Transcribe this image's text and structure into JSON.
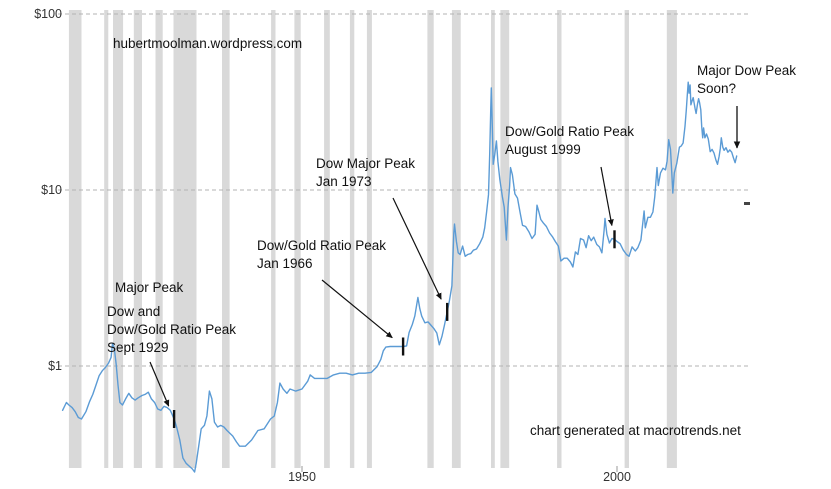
{
  "watermark": "hubertmoolman.wordpress.com",
  "credit": "chart generated at macrotrends.net",
  "annotations": {
    "major_peak": {
      "lines": [
        "Major Peak"
      ]
    },
    "peak_1929": {
      "lines": [
        "Dow and",
        "Dow/Gold Ratio Peak",
        "Sept 1929"
      ],
      "target": {
        "year": 1929.7,
        "value": 0.5
      }
    },
    "peak_1966": {
      "lines": [
        "Dow/Gold Ratio Peak",
        "Jan 1966"
      ],
      "target": {
        "year": 1966.05,
        "value": 1.29
      }
    },
    "peak_1973": {
      "lines": [
        "Dow Major Peak",
        "Jan 1973"
      ],
      "target": {
        "year": 1973.05,
        "value": 2.03
      }
    },
    "peak_1999": {
      "lines": [
        "Dow/Gold Ratio Peak",
        "August 1999"
      ],
      "target": {
        "year": 1999.6,
        "value": 5.25
      }
    },
    "peak_soon": {
      "lines": [
        "Major Dow Peak",
        "Soon?"
      ]
    }
  },
  "chart_data": {
    "type": "line",
    "title": "",
    "xlabel": "",
    "ylabel": "",
    "y_scale": "log",
    "y_ticks": [
      "$100",
      "$10",
      "$1"
    ],
    "y_tick_values": [
      100,
      10,
      1
    ],
    "x_ticks": [
      "1950",
      "2000"
    ],
    "x_tick_values": [
      1950,
      2000
    ],
    "x_range": [
      1912,
      2020
    ],
    "y_range": [
      0.2,
      120
    ],
    "grid": "dashed-horizontal",
    "line_color": "#5b9bd5",
    "recession_color": "#d9d9d9",
    "annotation_color": "#111111",
    "recessions": [
      [
        1913.0,
        1915.0
      ],
      [
        1918.6,
        1919.25
      ],
      [
        1920.0,
        1921.6
      ],
      [
        1923.3,
        1924.6
      ],
      [
        1926.75,
        1927.9
      ],
      [
        1929.6,
        1933.25
      ],
      [
        1937.3,
        1938.5
      ],
      [
        1945.1,
        1945.8
      ],
      [
        1948.8,
        1949.8
      ],
      [
        1953.5,
        1954.4
      ],
      [
        1957.6,
        1958.3
      ],
      [
        1960.3,
        1961.1
      ],
      [
        1969.9,
        1970.9
      ],
      [
        1973.8,
        1975.2
      ],
      [
        1980.0,
        1980.6
      ],
      [
        1981.5,
        1982.9
      ],
      [
        1990.5,
        1991.2
      ],
      [
        2001.2,
        2001.9
      ],
      [
        2007.9,
        2009.5
      ]
    ],
    "series": [
      {
        "name": "price-usd",
        "points": [
          [
            1912.0,
            0.56
          ],
          [
            1912.6,
            0.62
          ],
          [
            1913.0,
            0.6
          ],
          [
            1913.5,
            0.58
          ],
          [
            1914.0,
            0.55
          ],
          [
            1914.5,
            0.51
          ],
          [
            1915.0,
            0.5
          ],
          [
            1915.7,
            0.55
          ],
          [
            1916.3,
            0.63
          ],
          [
            1916.8,
            0.69
          ],
          [
            1917.3,
            0.78
          ],
          [
            1917.8,
            0.88
          ],
          [
            1918.3,
            0.94
          ],
          [
            1918.8,
            0.98
          ],
          [
            1919.3,
            1.04
          ],
          [
            1919.7,
            1.12
          ],
          [
            1919.92,
            1.34
          ],
          [
            1920.2,
            1.26
          ],
          [
            1920.5,
            1.02
          ],
          [
            1920.8,
            0.78
          ],
          [
            1921.1,
            0.62
          ],
          [
            1921.5,
            0.6
          ],
          [
            1922.0,
            0.65
          ],
          [
            1922.5,
            0.7
          ],
          [
            1923.0,
            0.66
          ],
          [
            1923.5,
            0.64
          ],
          [
            1924.0,
            0.66
          ],
          [
            1924.6,
            0.68
          ],
          [
            1925.1,
            0.69
          ],
          [
            1925.6,
            0.71
          ],
          [
            1926.1,
            0.65
          ],
          [
            1926.6,
            0.62
          ],
          [
            1927.1,
            0.57
          ],
          [
            1927.6,
            0.56
          ],
          [
            1928.1,
            0.59
          ],
          [
            1928.6,
            0.58
          ],
          [
            1929.1,
            0.56
          ],
          [
            1929.7,
            0.5
          ],
          [
            1930.1,
            0.45
          ],
          [
            1930.6,
            0.38
          ],
          [
            1931.1,
            0.3
          ],
          [
            1931.6,
            0.28
          ],
          [
            1932.1,
            0.27
          ],
          [
            1932.6,
            0.26
          ],
          [
            1932.95,
            0.25
          ],
          [
            1933.2,
            0.28
          ],
          [
            1933.6,
            0.35
          ],
          [
            1934.0,
            0.44
          ],
          [
            1934.5,
            0.46
          ],
          [
            1934.9,
            0.52
          ],
          [
            1935.3,
            0.72
          ],
          [
            1935.7,
            0.65
          ],
          [
            1936.1,
            0.48
          ],
          [
            1936.6,
            0.45
          ],
          [
            1937.1,
            0.46
          ],
          [
            1937.6,
            0.45
          ],
          [
            1938.1,
            0.43
          ],
          [
            1939.0,
            0.4
          ],
          [
            1939.6,
            0.37
          ],
          [
            1940.1,
            0.35
          ],
          [
            1941.0,
            0.35
          ],
          [
            1942.0,
            0.38
          ],
          [
            1943.0,
            0.43
          ],
          [
            1944.0,
            0.44
          ],
          [
            1945.0,
            0.5
          ],
          [
            1945.6,
            0.52
          ],
          [
            1946.1,
            0.62
          ],
          [
            1946.5,
            0.8
          ],
          [
            1947.0,
            0.74
          ],
          [
            1947.6,
            0.7
          ],
          [
            1948.1,
            0.74
          ],
          [
            1949.0,
            0.72
          ],
          [
            1950.0,
            0.74
          ],
          [
            1950.9,
            0.82
          ],
          [
            1951.3,
            0.89
          ],
          [
            1952.0,
            0.85
          ],
          [
            1953.0,
            0.85
          ],
          [
            1954.0,
            0.85
          ],
          [
            1955.0,
            0.89
          ],
          [
            1956.0,
            0.91
          ],
          [
            1957.0,
            0.91
          ],
          [
            1958.0,
            0.89
          ],
          [
            1959.0,
            0.91
          ],
          [
            1960.0,
            0.91
          ],
          [
            1961.0,
            0.92
          ],
          [
            1961.9,
            0.99
          ],
          [
            1962.5,
            1.09
          ],
          [
            1962.9,
            1.22
          ],
          [
            1963.3,
            1.28
          ],
          [
            1964.0,
            1.29
          ],
          [
            1965.0,
            1.29
          ],
          [
            1966.05,
            1.29
          ],
          [
            1966.6,
            1.3
          ],
          [
            1967.0,
            1.55
          ],
          [
            1967.5,
            1.72
          ],
          [
            1967.9,
            1.92
          ],
          [
            1968.4,
            2.45
          ],
          [
            1968.7,
            2.12
          ],
          [
            1969.0,
            1.92
          ],
          [
            1969.5,
            1.76
          ],
          [
            1970.0,
            1.78
          ],
          [
            1970.5,
            1.7
          ],
          [
            1970.95,
            1.63
          ],
          [
            1971.4,
            1.54
          ],
          [
            1971.8,
            1.32
          ],
          [
            1972.2,
            1.47
          ],
          [
            1972.6,
            1.7
          ],
          [
            1972.9,
            1.92
          ],
          [
            1973.05,
            2.03
          ],
          [
            1973.4,
            2.35
          ],
          [
            1973.8,
            2.85
          ],
          [
            1974.1,
            5.7
          ],
          [
            1974.2,
            6.4
          ],
          [
            1974.5,
            5.1
          ],
          [
            1974.8,
            4.4
          ],
          [
            1975.1,
            4.3
          ],
          [
            1975.5,
            4.8
          ],
          [
            1975.9,
            4.2
          ],
          [
            1976.3,
            4.3
          ],
          [
            1976.8,
            4.35
          ],
          [
            1977.2,
            4.55
          ],
          [
            1977.7,
            4.62
          ],
          [
            1978.2,
            4.95
          ],
          [
            1978.7,
            5.4
          ],
          [
            1979.0,
            6.1
          ],
          [
            1979.3,
            7.5
          ],
          [
            1979.6,
            9.4
          ],
          [
            1979.8,
            16.0
          ],
          [
            1979.95,
            28.0
          ],
          [
            1980.04,
            38.0
          ],
          [
            1980.2,
            23.0
          ],
          [
            1980.35,
            14.0
          ],
          [
            1980.6,
            16.0
          ],
          [
            1980.85,
            19.0
          ],
          [
            1981.1,
            14.5
          ],
          [
            1981.4,
            11.5
          ],
          [
            1981.8,
            9.2
          ],
          [
            1982.1,
            8.0
          ],
          [
            1982.45,
            5.2
          ],
          [
            1982.7,
            8.0
          ],
          [
            1982.95,
            10.5
          ],
          [
            1983.1,
            13.4
          ],
          [
            1983.4,
            12.2
          ],
          [
            1983.8,
            9.5
          ],
          [
            1984.2,
            9.0
          ],
          [
            1984.6,
            7.5
          ],
          [
            1985.0,
            6.3
          ],
          [
            1985.5,
            6.2
          ],
          [
            1986.0,
            5.8
          ],
          [
            1986.5,
            5.3
          ],
          [
            1987.0,
            5.6
          ],
          [
            1987.3,
            8.2
          ],
          [
            1987.6,
            7.5
          ],
          [
            1987.9,
            6.8
          ],
          [
            1988.3,
            6.5
          ],
          [
            1988.8,
            6.2
          ],
          [
            1989.3,
            5.7
          ],
          [
            1989.8,
            5.4
          ],
          [
            1990.2,
            5.1
          ],
          [
            1990.7,
            4.8
          ],
          [
            1991.1,
            3.95
          ],
          [
            1991.6,
            4.1
          ],
          [
            1992.1,
            4.1
          ],
          [
            1992.6,
            3.9
          ],
          [
            1993.0,
            3.65
          ],
          [
            1993.4,
            4.45
          ],
          [
            1993.8,
            4.3
          ],
          [
            1994.2,
            5.3
          ],
          [
            1994.7,
            5.2
          ],
          [
            1995.1,
            4.7
          ],
          [
            1995.5,
            5.5
          ],
          [
            1995.9,
            5.15
          ],
          [
            1996.3,
            5.4
          ],
          [
            1996.8,
            4.9
          ],
          [
            1997.2,
            4.75
          ],
          [
            1997.6,
            4.4
          ],
          [
            1997.95,
            5.9
          ],
          [
            1998.1,
            6.9
          ],
          [
            1998.4,
            5.6
          ],
          [
            1998.8,
            5.0
          ],
          [
            1999.2,
            5.3
          ],
          [
            1999.6,
            5.25
          ],
          [
            2000.0,
            5.1
          ],
          [
            2000.5,
            4.95
          ],
          [
            2001.0,
            4.55
          ],
          [
            2001.5,
            4.3
          ],
          [
            2001.9,
            4.2
          ],
          [
            2002.4,
            4.75
          ],
          [
            2002.9,
            4.5
          ],
          [
            2003.3,
            4.7
          ],
          [
            2003.8,
            5.2
          ],
          [
            2004.1,
            6.5
          ],
          [
            2004.3,
            7.6
          ],
          [
            2004.5,
            6.1
          ],
          [
            2004.9,
            7.0
          ],
          [
            2005.3,
            7.0
          ],
          [
            2005.7,
            7.5
          ],
          [
            2006.0,
            9.2
          ],
          [
            2006.35,
            13.4
          ],
          [
            2006.55,
            10.6
          ],
          [
            2006.9,
            12.5
          ],
          [
            2007.3,
            13.3
          ],
          [
            2007.7,
            13.0
          ],
          [
            2007.95,
            14.6
          ],
          [
            2008.2,
            19.3
          ],
          [
            2008.5,
            17.0
          ],
          [
            2008.7,
            12.5
          ],
          [
            2008.85,
            9.6
          ],
          [
            2009.1,
            12.5
          ],
          [
            2009.5,
            14.2
          ],
          [
            2009.9,
            17.5
          ],
          [
            2010.2,
            17.8
          ],
          [
            2010.5,
            18.5
          ],
          [
            2010.8,
            23.0
          ],
          [
            2011.0,
            28.5
          ],
          [
            2011.15,
            34.0
          ],
          [
            2011.3,
            41.0
          ],
          [
            2011.45,
            35.5
          ],
          [
            2011.6,
            39.5
          ],
          [
            2011.73,
            30.5
          ],
          [
            2011.9,
            32.0
          ],
          [
            2012.1,
            33.5
          ],
          [
            2012.4,
            29.0
          ],
          [
            2012.55,
            27.2
          ],
          [
            2012.8,
            31.0
          ],
          [
            2012.95,
            33.0
          ],
          [
            2013.1,
            31.5
          ],
          [
            2013.3,
            28.5
          ],
          [
            2013.45,
            23.0
          ],
          [
            2013.6,
            19.8
          ],
          [
            2013.75,
            22.5
          ],
          [
            2013.95,
            19.8
          ],
          [
            2014.2,
            20.8
          ],
          [
            2014.5,
            19.5
          ],
          [
            2014.8,
            16.5
          ],
          [
            2015.1,
            17.0
          ],
          [
            2015.4,
            16.2
          ],
          [
            2015.7,
            14.8
          ],
          [
            2015.95,
            14.0
          ],
          [
            2016.2,
            15.5
          ],
          [
            2016.4,
            17.2
          ],
          [
            2016.55,
            19.8
          ],
          [
            2016.8,
            17.5
          ],
          [
            2017.0,
            16.8
          ],
          [
            2017.3,
            17.4
          ],
          [
            2017.6,
            16.4
          ],
          [
            2017.9,
            16.9
          ],
          [
            2018.2,
            16.4
          ],
          [
            2018.5,
            15.2
          ],
          [
            2018.75,
            14.3
          ],
          [
            2019.0,
            15.6
          ]
        ]
      }
    ]
  }
}
